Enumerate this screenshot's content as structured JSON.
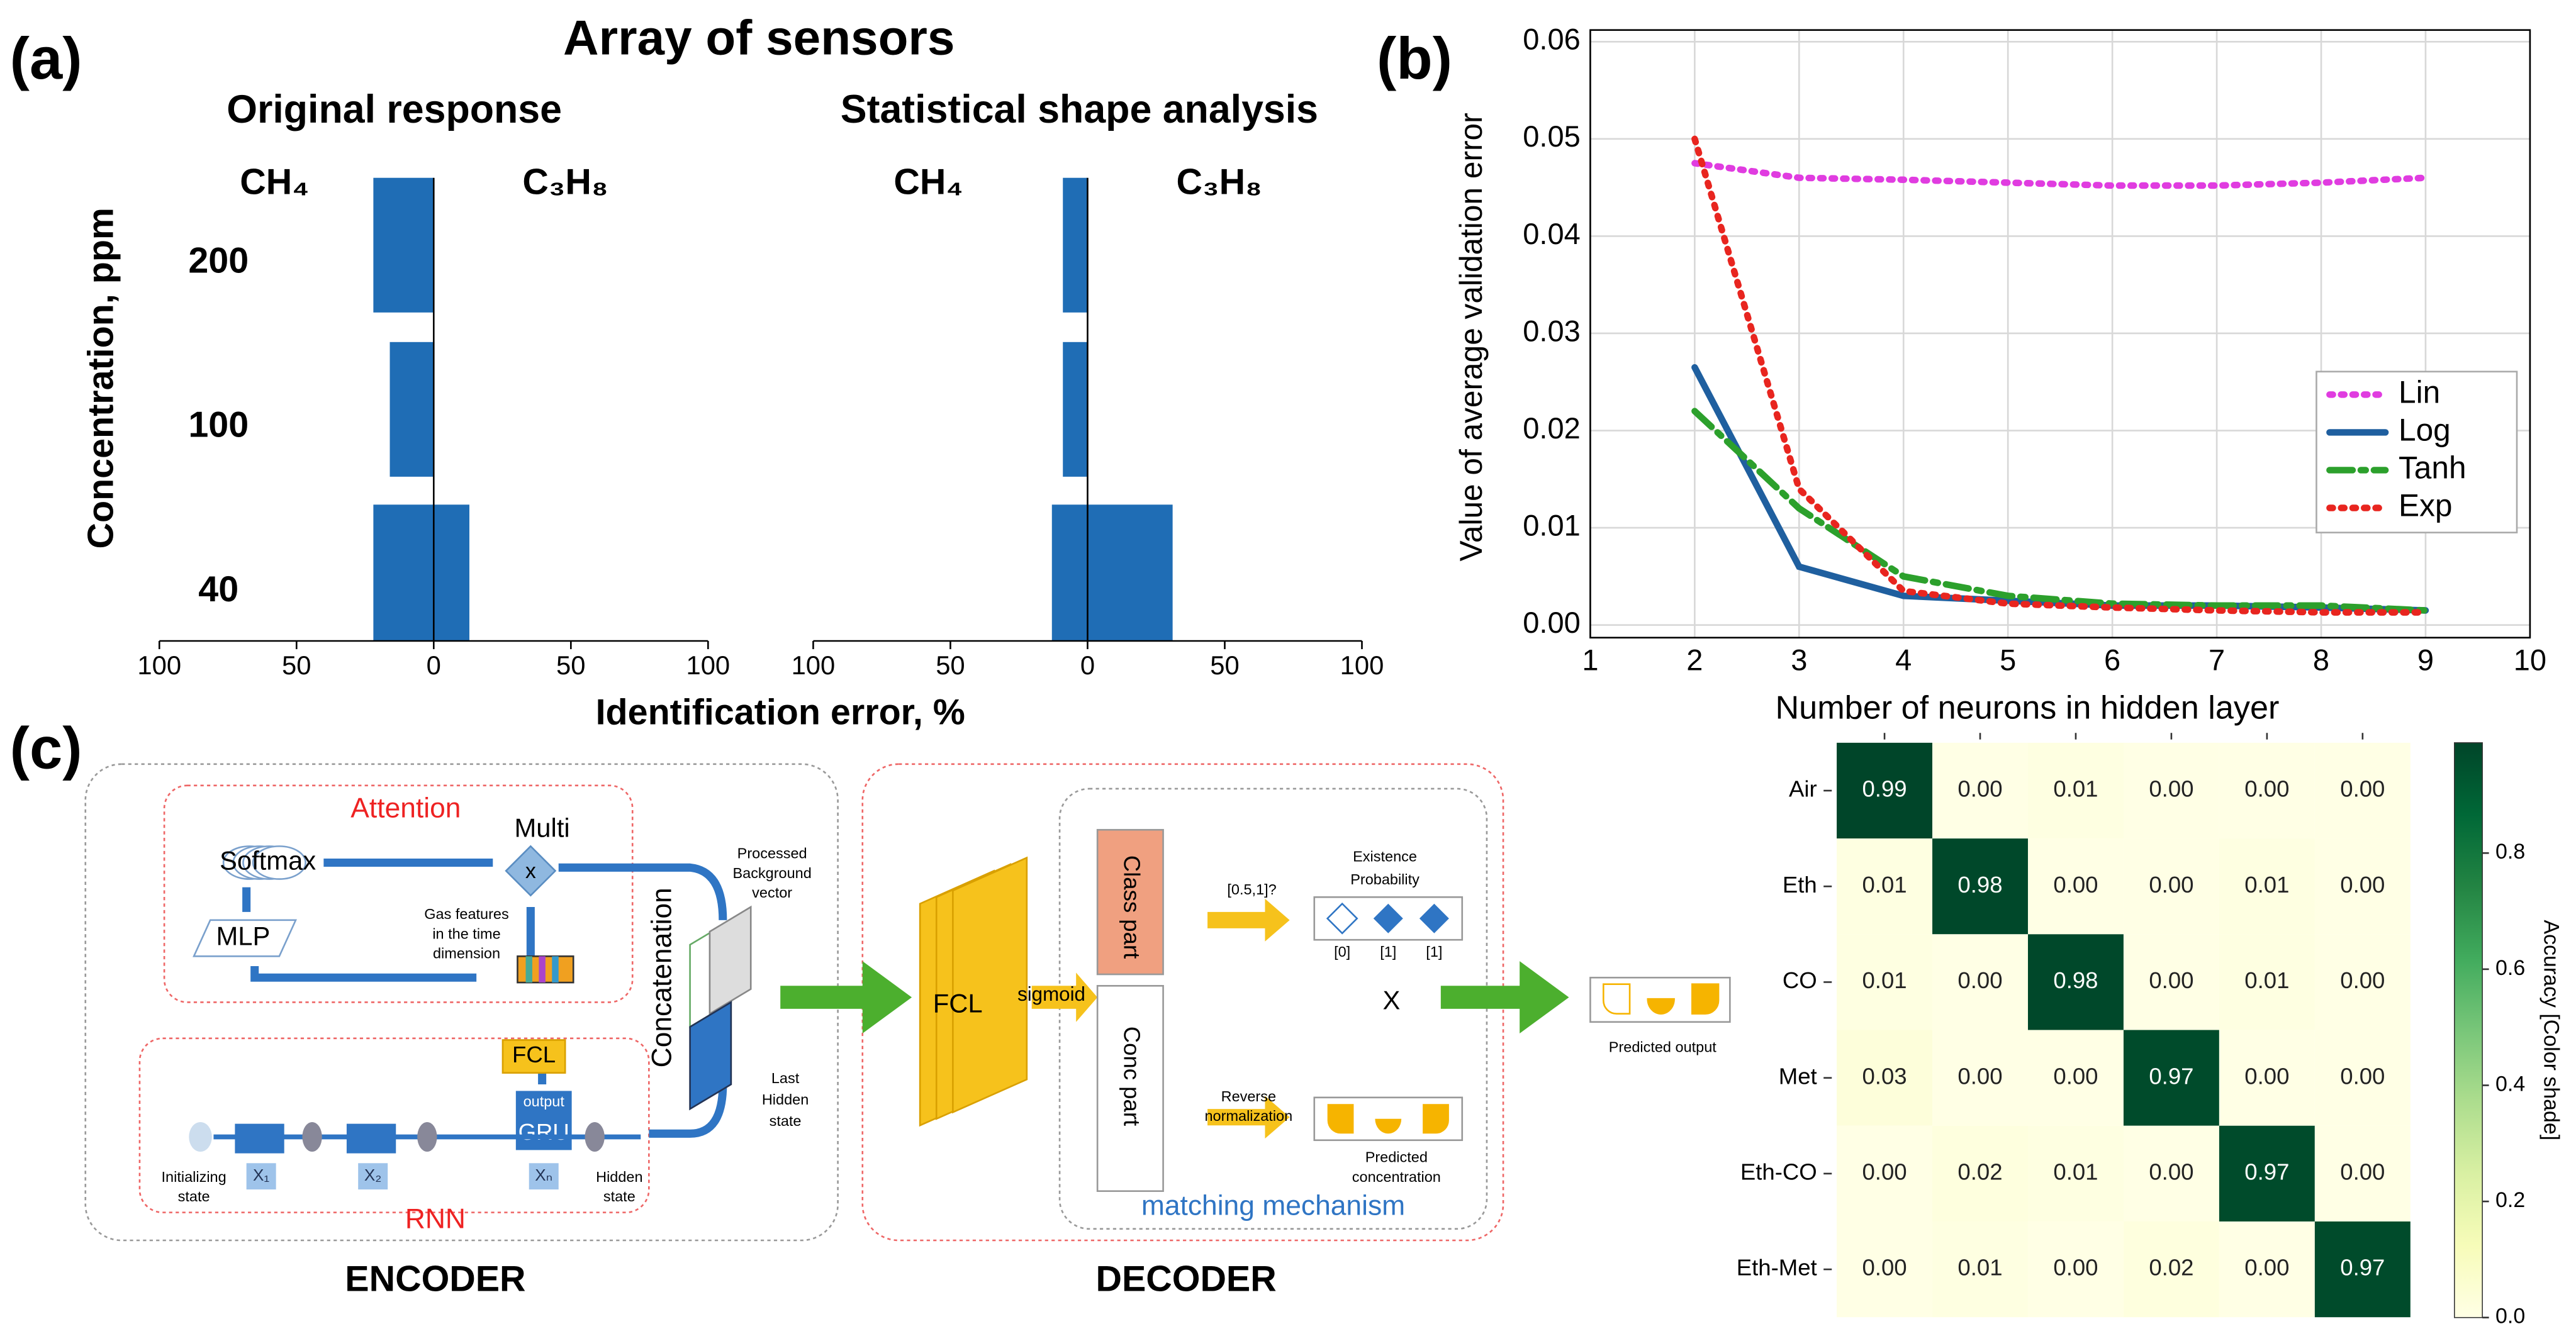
{
  "chart_data": [
    {
      "type": "bar",
      "orientation": "horizontal",
      "panel": "(a)",
      "title": "Array of sensors",
      "subtitle": "Original response",
      "xlabel": "Identification error, %",
      "ylabel": "Concentration, ppm",
      "categories": [
        "200",
        "100",
        "40"
      ],
      "series": [
        {
          "name": "CH₄",
          "color": "#1f6db5",
          "values": [
            -22,
            -16,
            -22
          ]
        },
        {
          "name": "C₃H₈",
          "color": "#1f6db5",
          "values": [
            0,
            0,
            13
          ]
        }
      ],
      "xlim": [
        -100,
        100
      ],
      "xticks": [
        {
          "value": -100,
          "label": "100"
        },
        {
          "value": -50,
          "label": "50"
        },
        0,
        50,
        100
      ]
    },
    {
      "type": "bar",
      "orientation": "horizontal",
      "subtitle": "Statistical shape analysis",
      "series": [
        {
          "name": "CH₄",
          "color": "#1f6db5",
          "values": [
            -9,
            -9,
            -13
          ]
        },
        {
          "name": "C₃H₈",
          "color": "#1f6db5",
          "values": [
            0,
            0,
            31
          ]
        }
      ],
      "xlim": [
        -100,
        100
      ],
      "xticks": [
        {
          "value": -100,
          "label": "100"
        },
        {
          "value": -50,
          "label": "50"
        },
        0,
        50,
        100
      ]
    },
    {
      "type": "line",
      "panel": "(b)",
      "xlabel": "Number of neurons in hidden layer",
      "ylabel": "Value of average validation error",
      "x": [
        2,
        3,
        4,
        5,
        6,
        7,
        8,
        9
      ],
      "series": [
        {
          "name": "Lin",
          "color": "#e03ce0",
          "style": "dotted",
          "values": [
            0.0475,
            0.046,
            0.0458,
            0.0455,
            0.0452,
            0.0452,
            0.0455,
            0.046
          ]
        },
        {
          "name": "Log",
          "color": "#1f5f9f",
          "style": "solid",
          "values": [
            0.0265,
            0.006,
            0.003,
            0.0025,
            0.002,
            0.002,
            0.0018,
            0.0015
          ]
        },
        {
          "name": "Tanh",
          "color": "#2ca02c",
          "style": "dashdot",
          "values": [
            0.022,
            0.012,
            0.005,
            0.003,
            0.0022,
            0.002,
            0.002,
            0.0015
          ]
        },
        {
          "name": "Exp",
          "color": "#e8251f",
          "style": "dotted",
          "values": [
            0.05,
            0.014,
            0.0035,
            0.0022,
            0.0018,
            0.0015,
            0.0013,
            0.0013
          ]
        }
      ],
      "xlim": [
        1,
        10
      ],
      "ylim": [
        -0.0013,
        0.0612
      ],
      "xticks": [
        1,
        2,
        3,
        4,
        5,
        6,
        7,
        8,
        9,
        10
      ],
      "yticks": [
        {
          "value": 0,
          "label": "0.00"
        },
        {
          "value": 0.01,
          "label": "0.01"
        },
        {
          "value": 0.02,
          "label": "0.02"
        },
        {
          "value": 0.03,
          "label": "0.03"
        },
        {
          "value": 0.04,
          "label": "0.04"
        },
        {
          "value": 0.05,
          "label": "0.05"
        },
        {
          "value": 0.06,
          "label": "0.06"
        }
      ],
      "grid": true,
      "legend": "right"
    },
    {
      "type": "heatmap",
      "categories": [
        "Air",
        "Eth",
        "CO",
        "Met",
        "Eth-CO",
        "Eth-Met"
      ],
      "values": [
        [
          0.99,
          0,
          0.01,
          0,
          0,
          0
        ],
        [
          0.01,
          0.98,
          0,
          0,
          0.01,
          0
        ],
        [
          0.01,
          0,
          0.98,
          0,
          0.01,
          0
        ],
        [
          0.03,
          0,
          0,
          0.97,
          0,
          0
        ],
        [
          0,
          0.02,
          0.01,
          0,
          0.97,
          0
        ],
        [
          0,
          0.01,
          0,
          0.02,
          0,
          0.97
        ]
      ],
      "value_labels": [
        [
          "0.99",
          "0.00",
          "0.01",
          "0.00",
          "0.00",
          "0.00"
        ],
        [
          "0.01",
          "0.98",
          "0.00",
          "0.00",
          "0.01",
          "0.00"
        ],
        [
          "0.01",
          "0.00",
          "0.98",
          "0.00",
          "0.01",
          "0.00"
        ],
        [
          "0.03",
          "0.00",
          "0.00",
          "0.97",
          "0.00",
          "0.00"
        ],
        [
          "0.00",
          "0.02",
          "0.01",
          "0.00",
          "0.97",
          "0.00"
        ],
        [
          "0.00",
          "0.01",
          "0.00",
          "0.02",
          "0.00",
          "0.97"
        ]
      ],
      "clim": [
        0,
        0.99
      ],
      "colorbar_ticks": [
        {
          "value": 0,
          "label": "0.0"
        },
        {
          "value": 0.2,
          "label": "0.2"
        },
        {
          "value": 0.4,
          "label": "0.4"
        },
        {
          "value": 0.6,
          "label": "0.6"
        },
        {
          "value": 0.8,
          "label": "0.8"
        }
      ],
      "colorbar_label": "Accuracy [Color shade]",
      "colormap": [
        "#ffffe5",
        "#f7fcb9",
        "#d9f0a3",
        "#addd8e",
        "#78c679",
        "#41ab5d",
        "#238443",
        "#006837",
        "#004529"
      ]
    }
  ],
  "diagram": {
    "panel": "(c)",
    "encoder": {
      "title": "ENCODER",
      "attention": "Attention",
      "multi": "Multi",
      "multiply": "x",
      "softmax": "Softmax",
      "mlp": "MLP",
      "gas_features": [
        "Gas features",
        "in the time",
        "dimension"
      ],
      "fcl": "FCL",
      "output": "output",
      "gru": "GRU",
      "initializing_state": [
        "Initializing",
        "state"
      ],
      "inputs": [
        "X₁",
        "X₂",
        "Xₙ"
      ],
      "hidden_state": [
        "Hidden",
        "state"
      ],
      "rnn": "RNN",
      "concatenation": "Concatenation",
      "background_vector": [
        "Processed",
        "Background",
        "vector"
      ],
      "last_hidden": [
        "Last",
        "Hidden",
        "state"
      ]
    },
    "decoder": {
      "title": "DECODER",
      "fcl": "FCL",
      "sigmoid": "sigmoid",
      "class_part": "Class part",
      "conc_part": "Conc part",
      "threshold": "[0.5,1]?",
      "existence": [
        "Existence",
        "Probability"
      ],
      "flags": [
        "[0]",
        "[1]",
        "[1]"
      ],
      "multiply": "X",
      "reverse": [
        "Reverse",
        "normalization"
      ],
      "predicted_concentration": [
        "Predicted",
        "concentration"
      ],
      "matching": "matching mechanism"
    },
    "predicted_output": "Predicted output"
  }
}
